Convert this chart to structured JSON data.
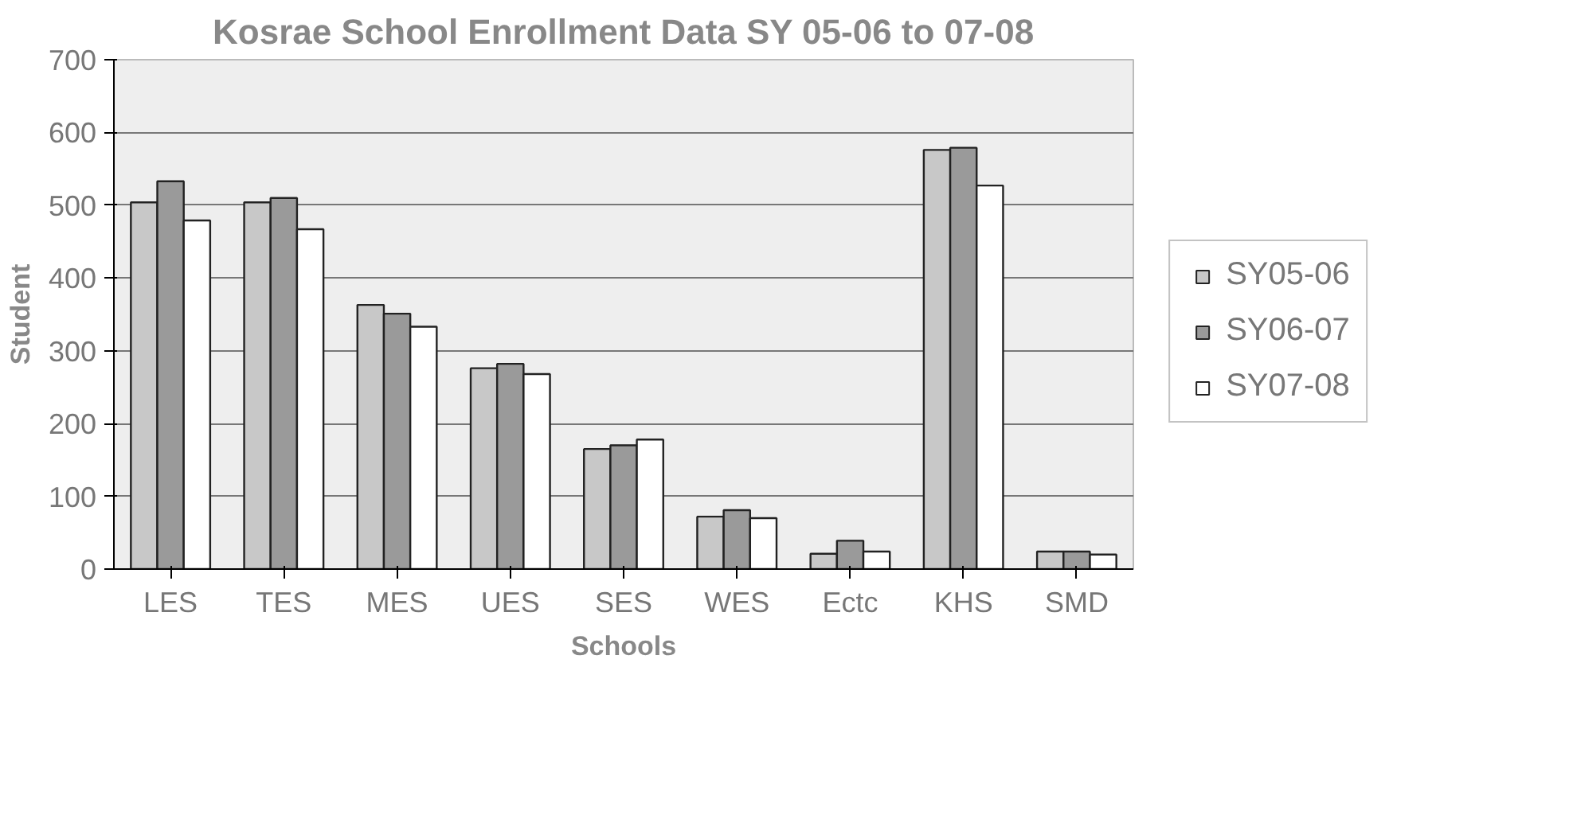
{
  "chart_data": {
    "type": "bar",
    "title": "Kosrae School Enrollment Data SY 05-06 to 07-08",
    "xlabel": "Schools",
    "ylabel": "Student",
    "categories": [
      "LES",
      "TES",
      "MES",
      "UES",
      "SES",
      "WES",
      "Ectc",
      "KHS",
      "SMD"
    ],
    "series": [
      {
        "name": "SY05-06",
        "color": "#c8c8c8",
        "values": [
          504,
          504,
          363,
          276,
          165,
          72,
          21,
          576,
          24
        ]
      },
      {
        "name": "SY06-07",
        "color": "#9a9a9a",
        "values": [
          533,
          510,
          351,
          282,
          170,
          81,
          39,
          579,
          24
        ]
      },
      {
        "name": "SY07-08",
        "color": "#ffffff",
        "values": [
          479,
          467,
          333,
          268,
          178,
          70,
          24,
          527,
          20
        ]
      }
    ],
    "ylim": [
      0,
      700
    ],
    "yticks": [
      0,
      100,
      200,
      300,
      400,
      500,
      600,
      700
    ],
    "grid": "y",
    "legend": "right"
  }
}
